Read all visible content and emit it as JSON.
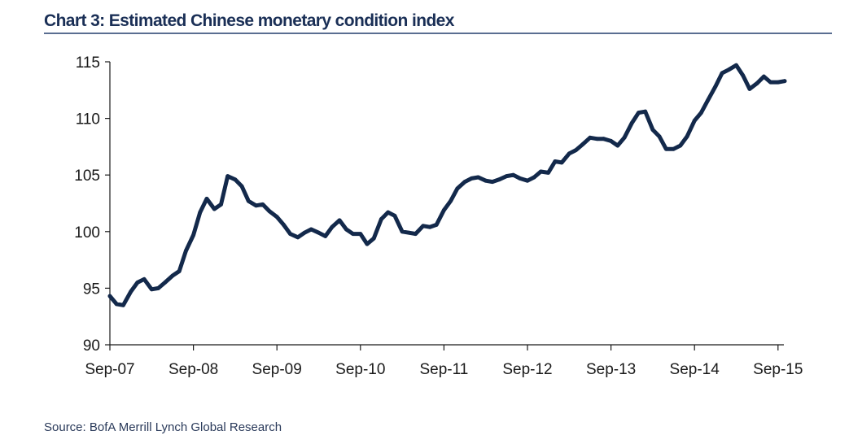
{
  "chart_data": {
    "type": "line",
    "title": "Chart 3: Estimated Chinese monetary condition index",
    "xlabel": "",
    "ylabel": "",
    "ylim": [
      90,
      115
    ],
    "yticks": [
      90,
      95,
      100,
      105,
      110,
      115
    ],
    "xtick_labels": [
      "Sep-07",
      "Sep-08",
      "Sep-09",
      "Sep-10",
      "Sep-11",
      "Sep-12",
      "Sep-13",
      "Sep-14",
      "Sep-15"
    ],
    "grid": false,
    "legend": null,
    "line_color": "#13294b",
    "series": [
      {
        "name": "Monetary condition index",
        "x": [
          0.0,
          0.08,
          0.16,
          0.25,
          0.33,
          0.41,
          0.5,
          0.58,
          0.66,
          0.75,
          0.83,
          0.91,
          1.0,
          1.08,
          1.16,
          1.25,
          1.33,
          1.41,
          1.5,
          1.58,
          1.66,
          1.75,
          1.83,
          1.91,
          2.0,
          2.08,
          2.16,
          2.25,
          2.33,
          2.41,
          2.5,
          2.58,
          2.66,
          2.75,
          2.83,
          2.91,
          3.0,
          3.08,
          3.16,
          3.25,
          3.33,
          3.41,
          3.5,
          3.58,
          3.66,
          3.75,
          3.83,
          3.91,
          4.0,
          4.08,
          4.16,
          4.25,
          4.33,
          4.41,
          4.5,
          4.58,
          4.66,
          4.75,
          4.83,
          4.91,
          5.0,
          5.08,
          5.16,
          5.25,
          5.33,
          5.41,
          5.5,
          5.58,
          5.66,
          5.75,
          5.83,
          5.91,
          6.0,
          6.08,
          6.16,
          6.25,
          6.33,
          6.41,
          6.5,
          6.58,
          6.66,
          6.75,
          6.83,
          6.91,
          7.0,
          7.08,
          7.16,
          7.25,
          7.33,
          7.41,
          7.5,
          7.58,
          7.66,
          7.75,
          7.83,
          7.91,
          8.0,
          8.08
        ],
        "values": [
          94.3,
          93.6,
          93.5,
          94.7,
          95.5,
          95.8,
          94.9,
          95.0,
          95.5,
          96.1,
          96.5,
          98.3,
          99.7,
          101.7,
          102.9,
          102.0,
          102.4,
          104.9,
          104.6,
          104.0,
          102.7,
          102.3,
          102.4,
          101.8,
          101.3,
          100.6,
          99.8,
          99.5,
          99.9,
          100.2,
          99.9,
          99.6,
          100.4,
          101.0,
          100.2,
          99.8,
          99.8,
          98.9,
          99.4,
          101.1,
          101.7,
          101.4,
          100.0,
          99.9,
          99.8,
          100.5,
          100.4,
          100.6,
          101.9,
          102.7,
          103.8,
          104.4,
          104.7,
          104.8,
          104.5,
          104.4,
          104.6,
          104.9,
          105.0,
          104.7,
          104.5,
          104.8,
          105.3,
          105.2,
          106.2,
          106.1,
          106.9,
          107.2,
          107.7,
          108.3,
          108.2,
          108.2,
          108.0,
          107.6,
          108.3,
          109.6,
          110.5,
          110.6,
          109.0,
          108.4,
          107.3,
          107.3,
          107.6,
          108.4,
          109.8,
          110.5,
          111.6,
          112.8,
          114.0,
          114.3,
          114.7,
          113.8,
          112.6,
          113.1,
          113.7,
          113.2,
          113.2,
          113.3
        ]
      }
    ]
  },
  "footer": {
    "source": "Source: BofA Merrill Lynch Global Research"
  }
}
